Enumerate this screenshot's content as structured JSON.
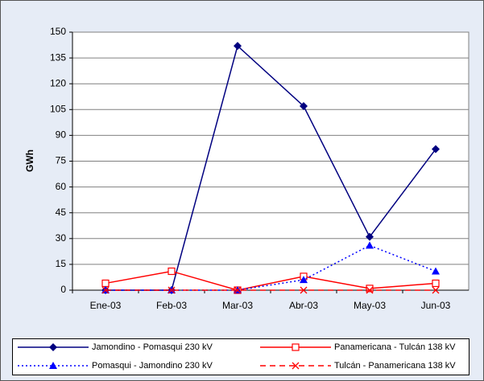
{
  "chart_data": {
    "type": "line",
    "y_label": "GWh",
    "categories": [
      "Ene-03",
      "Feb-03",
      "Mar-03",
      "Abr-03",
      "May-03",
      "Jun-03"
    ],
    "series": [
      {
        "name": "Jamondino - Pomasqui 230 kV",
        "color": "#000080",
        "dash": "solid",
        "marker": "diamond",
        "values": [
          0,
          0,
          142,
          107,
          31,
          82
        ]
      },
      {
        "name": "Panamericana - Tulcán 138 kV",
        "color": "#ff0000",
        "dash": "solid",
        "marker": "square",
        "values": [
          4,
          11,
          0,
          8,
          1,
          4
        ]
      },
      {
        "name": "Pomasqui - Jamondino 230 kV",
        "color": "#0000ff",
        "dash": "dotted",
        "marker": "triangle",
        "values": [
          0,
          0,
          0,
          6,
          26,
          11
        ]
      },
      {
        "name": "Tulcán - Panamericana 138 kV",
        "color": "#ff0000",
        "dash": "dashed",
        "marker": "x",
        "values": [
          0,
          0,
          0,
          0,
          0,
          0
        ]
      }
    ],
    "ylim": [
      0,
      150
    ],
    "yticks": [
      0,
      15,
      30,
      45,
      60,
      75,
      90,
      105,
      120,
      135,
      150
    ],
    "grid": true
  }
}
